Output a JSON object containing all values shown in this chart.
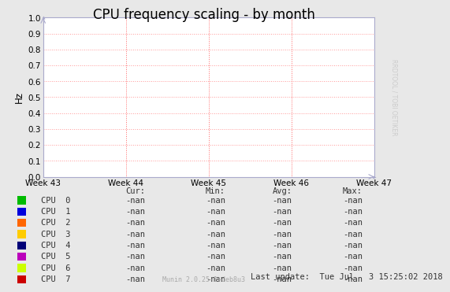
{
  "title": "CPU frequency scaling - by month",
  "ylabel": "Hz",
  "background_color": "#e8e8e8",
  "plot_bg_color": "#ffffff",
  "grid_color": "#ff9999",
  "xlim": [
    0,
    1
  ],
  "ylim": [
    0.0,
    1.0
  ],
  "yticks": [
    0.0,
    0.1,
    0.2,
    0.3,
    0.4,
    0.5,
    0.6,
    0.7,
    0.8,
    0.9,
    1.0
  ],
  "xtick_labels": [
    "Week 43",
    "Week 44",
    "Week 45",
    "Week 46",
    "Week 47"
  ],
  "xtick_positions": [
    0.0,
    0.25,
    0.5,
    0.75,
    1.0
  ],
  "vline_positions": [
    0.25,
    0.5,
    0.75
  ],
  "vline_color": "#ff6666",
  "watermark": "RRDTOOL / TOBI OETIKER",
  "footer": "Munin 2.0.25-1+deb8u3",
  "last_update": "Last update:  Tue Jul   3 15:25:02 2018",
  "legend_entries": [
    {
      "label": "CPU  0",
      "color": "#00bb00"
    },
    {
      "label": "CPU  1",
      "color": "#0000dd"
    },
    {
      "label": "CPU  2",
      "color": "#ff6600"
    },
    {
      "label": "CPU  3",
      "color": "#ffcc00"
    },
    {
      "label": "CPU  4",
      "color": "#000077"
    },
    {
      "label": "CPU  5",
      "color": "#bb00bb"
    },
    {
      "label": "CPU  6",
      "color": "#ccff00"
    },
    {
      "label": "CPU  7",
      "color": "#cc0000"
    }
  ],
  "table_header": [
    "Cur:",
    "Min:",
    "Avg:",
    "Max:"
  ],
  "table_values": "-nan",
  "title_fontsize": 12,
  "axis_fontsize": 7.5,
  "legend_fontsize": 7.5,
  "watermark_fontsize": 5.5,
  "footer_fontsize": 6
}
